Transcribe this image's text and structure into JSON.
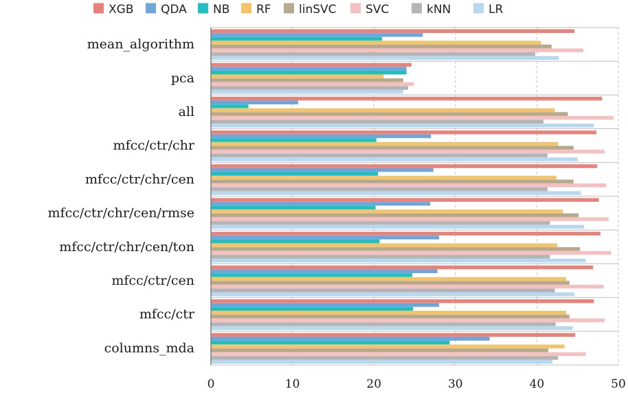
{
  "chart_data": {
    "type": "bar",
    "orientation": "horizontal",
    "categories": [
      "mean_algorithm",
      "pca",
      "all",
      "mfcc/ctr/chr",
      "mfcc/ctr/chr/cen",
      "mfcc/ctr/chr/cen/rmse",
      "mfcc/ctr/chr/cen/ton",
      "mfcc/ctr/cen",
      "mfcc/ctr",
      "columns_mda"
    ],
    "series": [
      {
        "name": "XGB",
        "color": "#e8837c",
        "values": [
          44.6,
          24.6,
          48.0,
          47.3,
          47.4,
          47.6,
          47.8,
          46.9,
          47.0,
          44.7
        ]
      },
      {
        "name": "QDA",
        "color": "#6ea6dc",
        "values": [
          26.0,
          24.0,
          10.7,
          27.0,
          27.3,
          26.9,
          28.0,
          27.8,
          28.0,
          34.2
        ]
      },
      {
        "name": "NB",
        "color": "#20c0c0",
        "values": [
          21.0,
          24.0,
          4.6,
          20.3,
          20.5,
          20.2,
          20.7,
          24.7,
          24.8,
          29.3
        ]
      },
      {
        "name": "RF",
        "color": "#f4c46c",
        "values": [
          40.5,
          21.2,
          42.2,
          42.6,
          42.4,
          43.2,
          42.5,
          43.6,
          43.6,
          43.4
        ]
      },
      {
        "name": "linSVC",
        "color": "#b7a98c",
        "values": [
          41.8,
          23.6,
          43.8,
          44.5,
          44.5,
          45.1,
          45.3,
          44.0,
          44.0,
          41.4
        ]
      },
      {
        "name": "SVC",
        "color": "#f4c0c0",
        "values": [
          45.7,
          24.9,
          49.4,
          48.3,
          48.5,
          48.8,
          49.1,
          48.2,
          48.3,
          46.0
        ]
      },
      {
        "name": "kNN",
        "color": "#b4b4b4",
        "values": [
          39.8,
          24.2,
          40.8,
          41.3,
          41.3,
          41.6,
          41.6,
          42.2,
          42.3,
          42.6
        ]
      },
      {
        "name": "LR",
        "color": "#b8d8f0",
        "values": [
          42.7,
          23.6,
          47.0,
          45.0,
          45.4,
          45.8,
          46.0,
          44.6,
          44.4,
          41.9
        ]
      }
    ],
    "xlim": [
      0,
      50
    ],
    "xticks": [
      "0",
      "10",
      "20",
      "30",
      "40",
      "50"
    ],
    "grid": "vertical",
    "legend_position": "top",
    "title": "",
    "xlabel": "",
    "ylabel": ""
  }
}
